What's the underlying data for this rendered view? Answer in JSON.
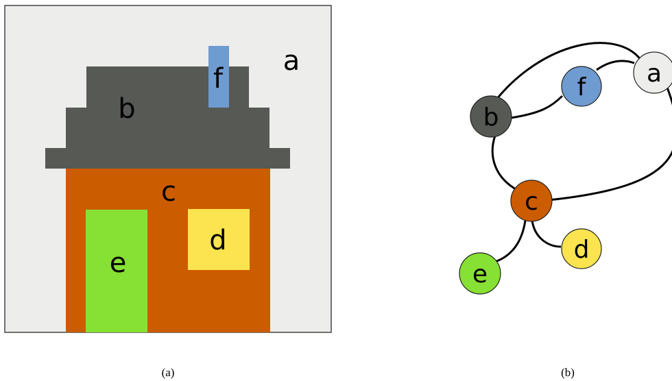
{
  "panel_a": {
    "caption": "(a)",
    "colors": {
      "background": "#ededeb",
      "border": "#444444",
      "roof": "#575955",
      "wall": "#cc5c00",
      "window": "#fbe44f",
      "door": "#87e034",
      "chimney": "#6e9bd0"
    },
    "regions": {
      "a": "a",
      "b": "b",
      "c": "c",
      "d": "d",
      "e": "e",
      "f": "f"
    }
  },
  "panel_b": {
    "caption": "(b)",
    "nodes": [
      {
        "id": "a",
        "label": "a",
        "color": "#ededeb"
      },
      {
        "id": "b",
        "label": "b",
        "color": "#575955"
      },
      {
        "id": "c",
        "label": "c",
        "color": "#cc5c00"
      },
      {
        "id": "d",
        "label": "d",
        "color": "#fbe44f"
      },
      {
        "id": "e",
        "label": "e",
        "color": "#87e034"
      },
      {
        "id": "f",
        "label": "f",
        "color": "#6e9bd0"
      }
    ],
    "edges": [
      [
        "a",
        "b"
      ],
      [
        "a",
        "f"
      ],
      [
        "a",
        "c"
      ],
      [
        "b",
        "f"
      ],
      [
        "b",
        "c"
      ],
      [
        "c",
        "d"
      ],
      [
        "c",
        "e"
      ]
    ]
  }
}
